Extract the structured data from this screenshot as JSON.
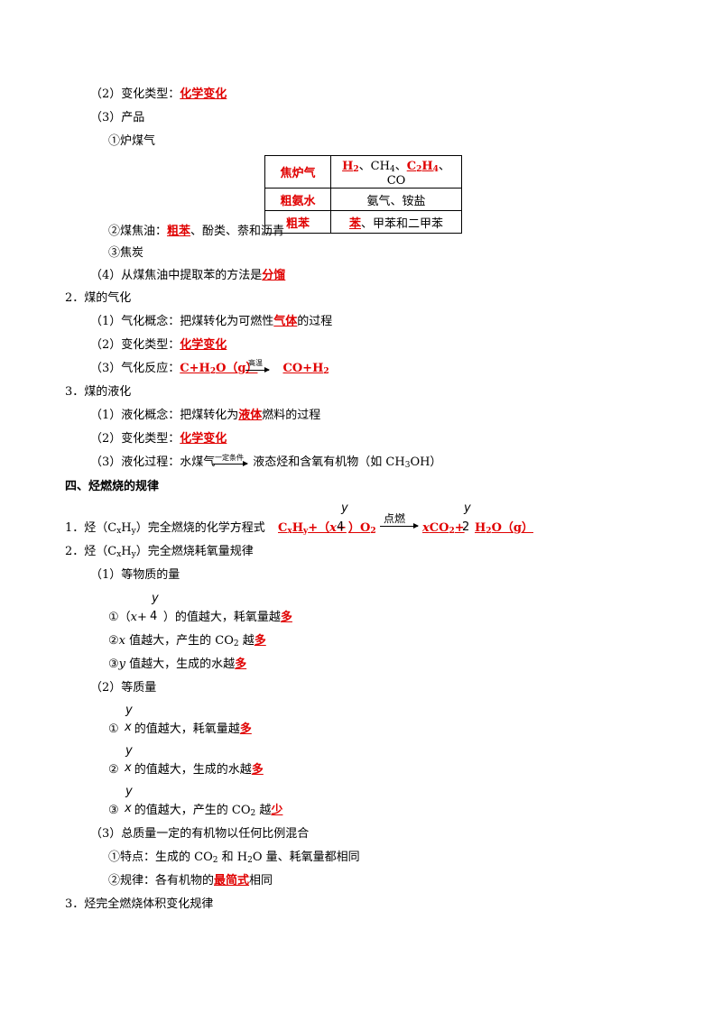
{
  "s1": {
    "l2_label": "（2）变化类型：",
    "l2_ans": "化学变化",
    "l3": "（3）产品",
    "i1": "①炉煤气",
    "table": [
      {
        "k": "焦炉气",
        "v1": "H",
        "v1sub": "2",
        "v2": "、CH",
        "v2sub": "4",
        "v3": "、",
        "v4": "C",
        "v4sub1": "2",
        "v5": "H",
        "v5sub": "4",
        "v6": "、CO"
      },
      {
        "k": "粗氨水",
        "v": "氨气、铵盐"
      },
      {
        "k": "粗苯",
        "vr": "苯",
        "v": "、甲苯和二甲苯"
      }
    ],
    "i2_label": "②煤焦油：",
    "i2_ans": "粗苯",
    "i2_rest": "、酚类、萘和沥青",
    "i3": "③焦炭",
    "l4_label": "（4）从煤焦油中提取苯的方法是",
    "l4_ans": "分馏"
  },
  "s2": {
    "head": "2．煤的气化",
    "l1_a": "（1）气化概念：把煤转化为可燃性",
    "l1_ans": "气体",
    "l1_b": "的过程",
    "l2_label": "（2）变化类型：",
    "l2_ans": "化学变化",
    "l3_label": "（3）气化反应：",
    "l3_lhs": "C+H",
    "l3_lhs_sub": "2",
    "l3_lhs2": "O（g）",
    "l3_cond": "高温",
    "l3_rhs": "CO+H",
    "l3_rhs_sub": "2"
  },
  "s3": {
    "head": "3．煤的液化",
    "l1_a": "（1）液化概念：把煤转化为",
    "l1_ans": "液体",
    "l1_b": "燃料的过程",
    "l2_label": "（2）变化类型：",
    "l2_ans": "化学变化",
    "l3_a": "（3）液化过程：水煤气",
    "l3_cond": "一定条件",
    "l3_b": "液态烃和含氧有机物（如 CH",
    "l3_sub": "3",
    "l3_c": "OH）"
  },
  "s4": {
    "title": "四、烃燃烧的规律",
    "q1_a": "1．烃（C",
    "q1_x": "x",
    "q1_b": "H",
    "q1_y": "y",
    "q1_c": "）完全燃烧的化学方程式",
    "q1_eq_a": "C",
    "q1_eq_x": "x",
    "q1_eq_b": "H",
    "q1_eq_y": "y",
    "q1_eq_c": "+（",
    "q1_eq_d": "x",
    "q1_eq_e": "+",
    "frac_y": "y",
    "frac_4": "4",
    "frac_2": "2",
    "q1_eq_f": "）O",
    "q1_eq_f_sub": "2",
    "q1_cond": "点燃",
    "q1_eq_g": "x",
    "q1_eq_h": "CO",
    "q1_eq_h_sub": "2",
    "q1_eq_i": "+",
    "q1_eq_j": "H",
    "q1_eq_j_sub": "2",
    "q1_eq_k": "O（g）",
    "q2_a": "2．烃（C",
    "q2_b": "）完全燃烧耗氧量规律",
    "p1": "（1）等物质的量",
    "p1_i1_a": "①（",
    "p1_i1_x": "x",
    "p1_i1_b": "+",
    "p1_i1_c": "）的值越大，耗氧量越",
    "p1_i1_ans": "多",
    "p1_i2_a": "②",
    "p1_i2_x": "x",
    "p1_i2_b": " 值越大，产生的 CO",
    "p1_i2_sub": "2",
    "p1_i2_c": " 越",
    "p1_i2_ans": "多",
    "p1_i3_a": "③",
    "p1_i3_y": "y",
    "p1_i3_b": " 值越大，生成的水越",
    "p1_i3_ans": "多",
    "p2": "（2）等质量",
    "frac_x": "x",
    "p2_i1_a": "①",
    "p2_i1_b": " 的值越大，耗氧量越",
    "p2_i1_ans": "多",
    "p2_i2_a": "②",
    "p2_i2_b": " 的值越大，生成的水越",
    "p2_i2_ans": "多",
    "p2_i3_a": "③",
    "p2_i3_b": " 的值越大，产生的 CO",
    "p2_i3_sub": "2",
    "p2_i3_c": " 越",
    "p2_i3_ans": "少",
    "p3": "（3）总质量一定的有机物以任何比例混合",
    "p3_i1_a": "①特点：生成的 CO",
    "p3_i1_sub": "2",
    "p3_i1_b": " 和 H",
    "p3_i1_sub2": "2",
    "p3_i1_c": "O 量、耗氧量都相同",
    "p3_i2_a": "②规律：各有机物的",
    "p3_i2_ans": "最简式",
    "p3_i2_b": "相同",
    "q3": "3．烃完全燃烧体积变化规律"
  }
}
